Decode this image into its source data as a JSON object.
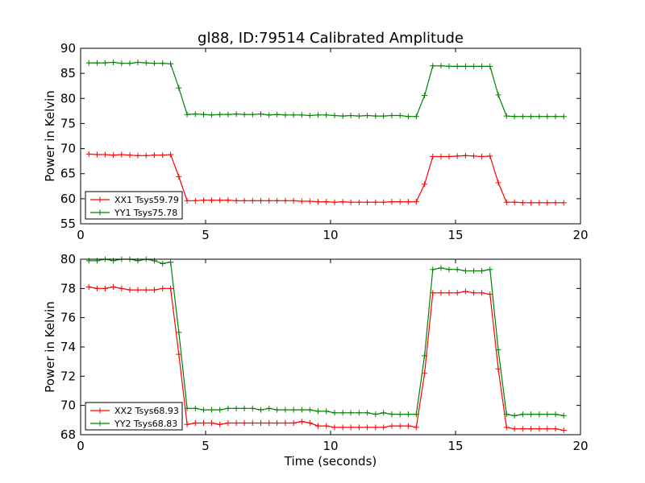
{
  "chart_data": [
    {
      "type": "line",
      "title": "gl88, ID:79514 Calibrated Amplitude",
      "xlabel": "",
      "ylabel": "Power in Kelvin",
      "xlim": [
        0,
        20
      ],
      "ylim": [
        55,
        90
      ],
      "xticks": [
        0,
        5,
        10,
        15,
        20
      ],
      "yticks": [
        55,
        60,
        65,
        70,
        75,
        80,
        85,
        90
      ],
      "legend_position": "lower-left",
      "grid": false,
      "series": [
        {
          "name": "XX1 Tsys59.79",
          "color": "#ff0000",
          "x": [
            0.33,
            0.66,
            0.98,
            1.31,
            1.64,
            1.97,
            2.29,
            2.62,
            2.95,
            3.28,
            3.6,
            3.93,
            4.26,
            4.59,
            4.92,
            5.24,
            5.57,
            5.9,
            6.23,
            6.55,
            6.88,
            7.21,
            7.54,
            7.86,
            8.19,
            8.52,
            8.85,
            9.17,
            9.5,
            9.83,
            10.16,
            10.49,
            10.81,
            11.14,
            11.47,
            11.8,
            12.12,
            12.45,
            12.78,
            13.11,
            13.43,
            13.76,
            14.09,
            14.42,
            14.74,
            15.07,
            15.4,
            15.73,
            16.05,
            16.38,
            16.71,
            17.04,
            17.36,
            17.69,
            18.02,
            18.35,
            18.67,
            19.0,
            19.33
          ],
          "y": [
            68.9,
            68.8,
            68.8,
            68.7,
            68.8,
            68.7,
            68.6,
            68.6,
            68.7,
            68.7,
            68.8,
            64.4,
            59.6,
            59.6,
            59.7,
            59.7,
            59.7,
            59.7,
            59.6,
            59.6,
            59.6,
            59.6,
            59.6,
            59.6,
            59.6,
            59.6,
            59.5,
            59.5,
            59.4,
            59.4,
            59.3,
            59.4,
            59.3,
            59.3,
            59.3,
            59.3,
            59.3,
            59.4,
            59.4,
            59.4,
            59.4,
            62.9,
            68.4,
            68.4,
            68.4,
            68.5,
            68.6,
            68.5,
            68.4,
            68.5,
            63.2,
            59.3,
            59.3,
            59.2,
            59.2,
            59.2,
            59.2,
            59.2,
            59.2
          ]
        },
        {
          "name": "YY1 Tsys75.78",
          "color": "#008000",
          "x": [
            0.33,
            0.66,
            0.98,
            1.31,
            1.64,
            1.97,
            2.29,
            2.62,
            2.95,
            3.28,
            3.6,
            3.93,
            4.26,
            4.59,
            4.92,
            5.24,
            5.57,
            5.9,
            6.23,
            6.55,
            6.88,
            7.21,
            7.54,
            7.86,
            8.19,
            8.52,
            8.85,
            9.17,
            9.5,
            9.83,
            10.16,
            10.49,
            10.81,
            11.14,
            11.47,
            11.8,
            12.12,
            12.45,
            12.78,
            13.11,
            13.43,
            13.76,
            14.09,
            14.42,
            14.74,
            15.07,
            15.4,
            15.73,
            16.05,
            16.38,
            16.71,
            17.04,
            17.36,
            17.69,
            18.02,
            18.35,
            18.67,
            19.0,
            19.33
          ],
          "y": [
            87.1,
            87.1,
            87.1,
            87.2,
            87.0,
            87.0,
            87.2,
            87.1,
            87.0,
            87.0,
            86.9,
            82.1,
            76.8,
            76.9,
            76.8,
            76.7,
            76.8,
            76.8,
            76.9,
            76.8,
            76.8,
            76.9,
            76.7,
            76.8,
            76.7,
            76.7,
            76.7,
            76.6,
            76.7,
            76.7,
            76.6,
            76.5,
            76.6,
            76.5,
            76.6,
            76.5,
            76.5,
            76.6,
            76.6,
            76.4,
            76.4,
            80.6,
            86.5,
            86.5,
            86.4,
            86.4,
            86.4,
            86.4,
            86.4,
            86.4,
            80.7,
            76.5,
            76.4,
            76.4,
            76.4,
            76.4,
            76.4,
            76.4,
            76.4
          ]
        }
      ]
    },
    {
      "type": "line",
      "title": "",
      "xlabel": "Time (seconds)",
      "ylabel": "Power in Kelvin",
      "xlim": [
        0,
        20
      ],
      "ylim": [
        68,
        80
      ],
      "xticks": [
        0,
        5,
        10,
        15,
        20
      ],
      "yticks": [
        68,
        70,
        72,
        74,
        76,
        78,
        80
      ],
      "legend_position": "lower-left",
      "grid": false,
      "series": [
        {
          "name": "XX2 Tsys68.93",
          "color": "#ff0000",
          "x": [
            0.33,
            0.66,
            0.98,
            1.31,
            1.64,
            1.97,
            2.29,
            2.62,
            2.95,
            3.28,
            3.6,
            3.93,
            4.26,
            4.59,
            4.92,
            5.24,
            5.57,
            5.9,
            6.23,
            6.55,
            6.88,
            7.21,
            7.54,
            7.86,
            8.19,
            8.52,
            8.85,
            9.17,
            9.5,
            9.83,
            10.16,
            10.49,
            10.81,
            11.14,
            11.47,
            11.8,
            12.12,
            12.45,
            12.78,
            13.11,
            13.43,
            13.76,
            14.09,
            14.42,
            14.74,
            15.07,
            15.4,
            15.73,
            16.05,
            16.38,
            16.71,
            17.04,
            17.36,
            17.69,
            18.02,
            18.35,
            18.67,
            19.0,
            19.33
          ],
          "y": [
            78.1,
            78.0,
            78.0,
            78.1,
            78.0,
            77.9,
            77.9,
            77.9,
            77.9,
            78.0,
            78.0,
            73.5,
            68.7,
            68.8,
            68.8,
            68.8,
            68.7,
            68.8,
            68.8,
            68.8,
            68.8,
            68.8,
            68.8,
            68.8,
            68.8,
            68.8,
            68.9,
            68.8,
            68.6,
            68.6,
            68.5,
            68.5,
            68.5,
            68.5,
            68.5,
            68.5,
            68.5,
            68.6,
            68.6,
            68.6,
            68.5,
            72.2,
            77.7,
            77.7,
            77.7,
            77.7,
            77.8,
            77.7,
            77.7,
            77.6,
            72.5,
            68.5,
            68.4,
            68.4,
            68.4,
            68.4,
            68.4,
            68.4,
            68.3
          ]
        },
        {
          "name": "YY2 Tsys68.83",
          "color": "#008000",
          "x": [
            0.33,
            0.66,
            0.98,
            1.31,
            1.64,
            1.97,
            2.29,
            2.62,
            2.95,
            3.28,
            3.6,
            3.93,
            4.26,
            4.59,
            4.92,
            5.24,
            5.57,
            5.9,
            6.23,
            6.55,
            6.88,
            7.21,
            7.54,
            7.86,
            8.19,
            8.52,
            8.85,
            9.17,
            9.5,
            9.83,
            10.16,
            10.49,
            10.81,
            11.14,
            11.47,
            11.8,
            12.12,
            12.45,
            12.78,
            13.11,
            13.43,
            13.76,
            14.09,
            14.42,
            14.74,
            15.07,
            15.4,
            15.73,
            16.05,
            16.38,
            16.71,
            17.04,
            17.36,
            17.69,
            18.02,
            18.35,
            18.67,
            19.0,
            19.33
          ],
          "y": [
            79.9,
            79.9,
            80.0,
            79.9,
            80.0,
            80.0,
            79.9,
            80.0,
            79.9,
            79.7,
            79.8,
            75.0,
            69.8,
            69.8,
            69.7,
            69.7,
            69.7,
            69.8,
            69.8,
            69.8,
            69.8,
            69.7,
            69.8,
            69.7,
            69.7,
            69.7,
            69.7,
            69.7,
            69.6,
            69.6,
            69.5,
            69.5,
            69.5,
            69.5,
            69.5,
            69.4,
            69.5,
            69.4,
            69.4,
            69.4,
            69.4,
            73.4,
            79.3,
            79.4,
            79.3,
            79.3,
            79.2,
            79.2,
            79.2,
            79.3,
            73.8,
            69.4,
            69.3,
            69.4,
            69.4,
            69.4,
            69.4,
            69.4,
            69.3
          ]
        }
      ]
    }
  ]
}
